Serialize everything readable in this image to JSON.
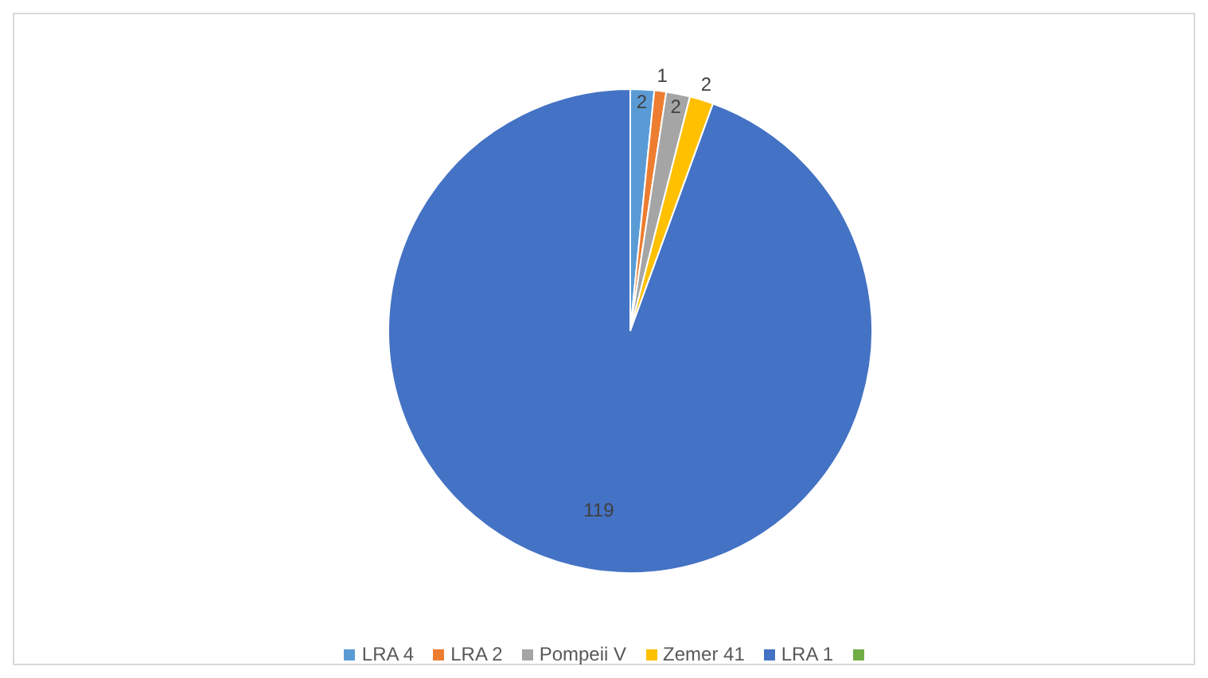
{
  "chart_data": {
    "type": "pie",
    "categories": [
      "LRA 4",
      "LRA 2",
      "Pompeii V",
      "Zemer 41",
      "LRA 1",
      null
    ],
    "values": [
      2,
      1,
      2,
      2,
      119,
      null
    ],
    "colors": [
      "#5b9bd5",
      "#ed7d31",
      "#a5a5a5",
      "#ffc000",
      "#4472c4",
      "#70ad47"
    ],
    "data_labels": true,
    "legend": "bottom"
  }
}
